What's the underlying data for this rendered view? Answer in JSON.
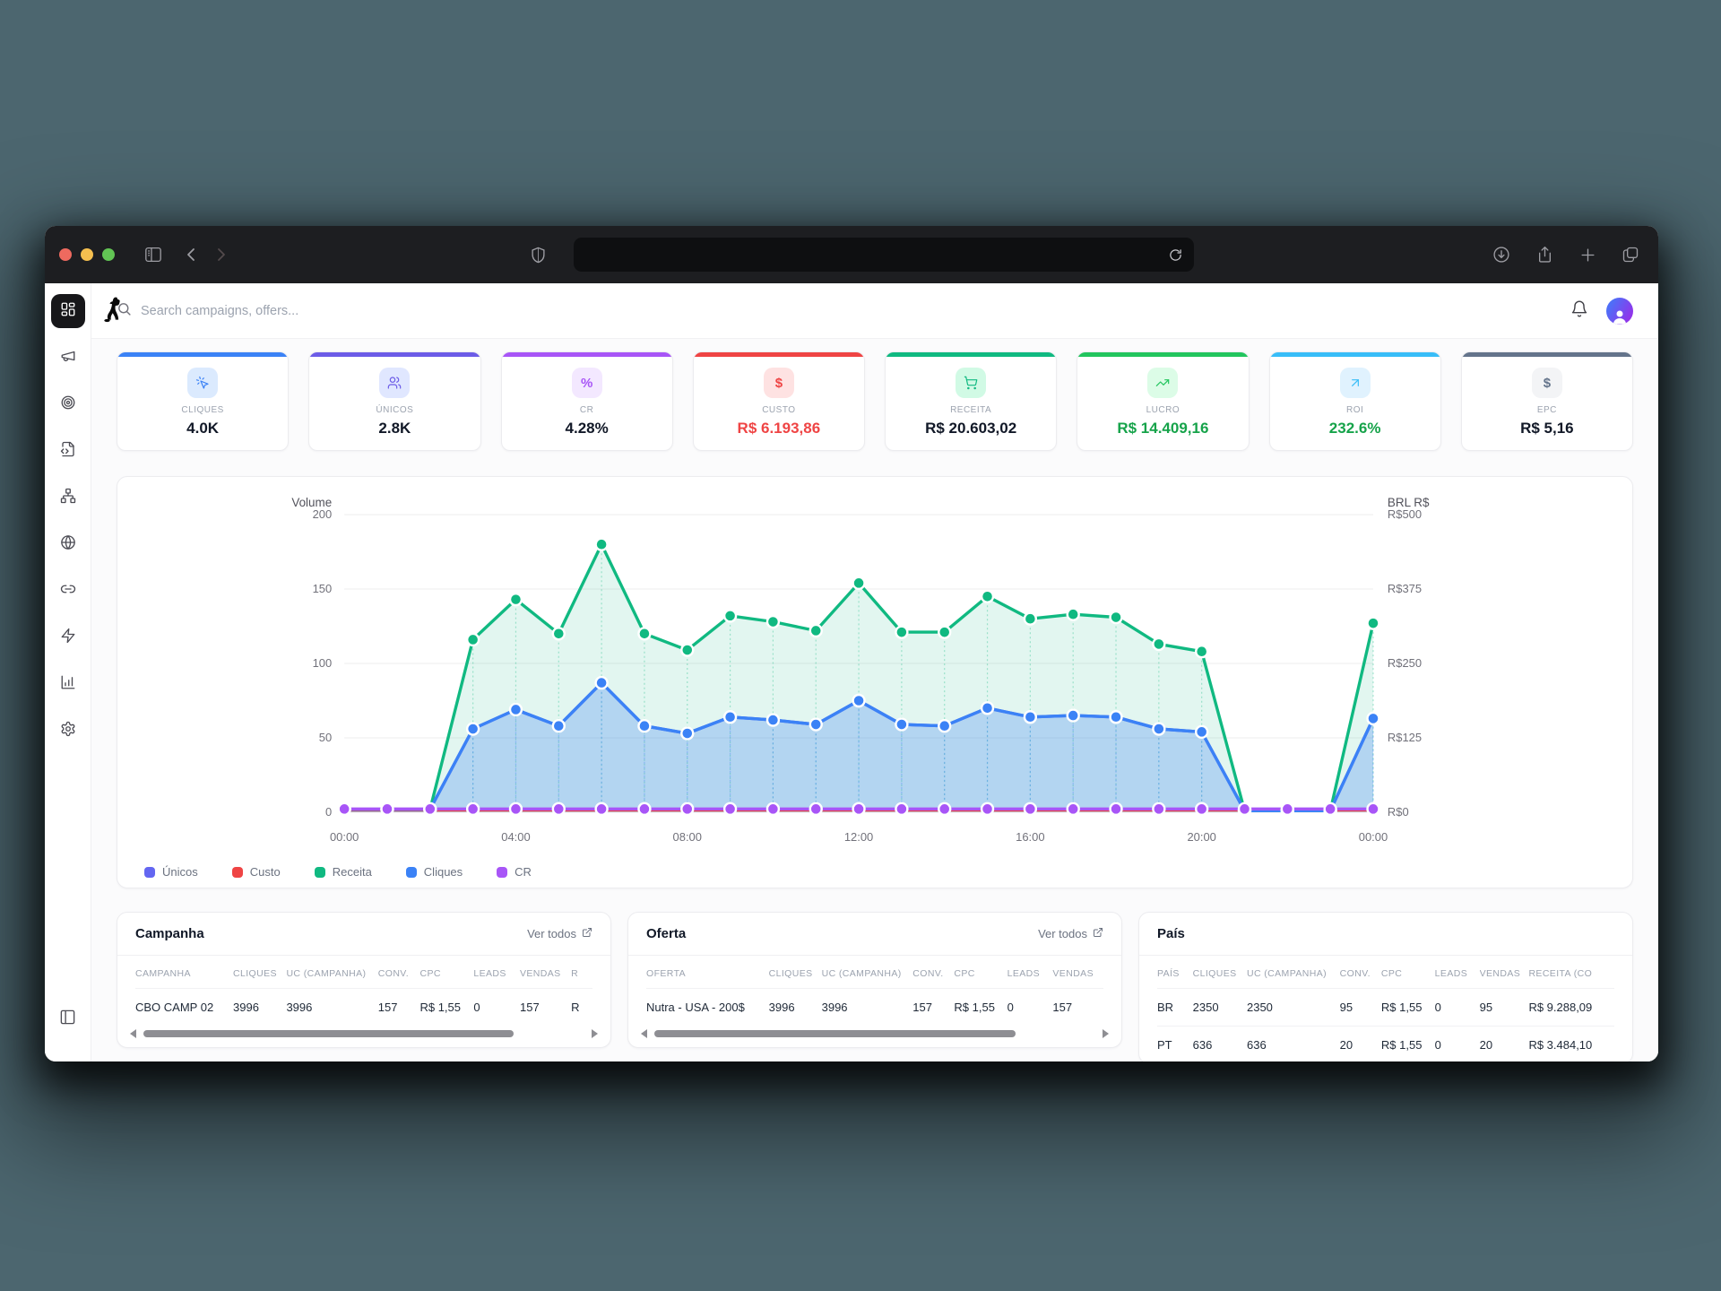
{
  "colors": {
    "backdrop": "#4c666f",
    "chrome_bg": "#1d1e21",
    "traffic_red": "#ee6a5f",
    "traffic_yellow": "#f5bf4f",
    "traffic_green": "#62c554",
    "accent_blue": "#3b82f6",
    "accent_indigo": "#6c5ce7",
    "accent_purple": "#a855f7",
    "accent_red": "#ef4444",
    "accent_emerald": "#10b981",
    "accent_green": "#22c55e",
    "accent_sky": "#38bdf8",
    "accent_slate": "#64748b",
    "positive_green": "#16a34a"
  },
  "chrome": {
    "icons": [
      "sidebar-toggle-icon",
      "back-icon",
      "forward-icon",
      "shield-icon",
      "reload-icon",
      "download-icon",
      "share-icon",
      "new-tab-icon",
      "tab-overview-icon"
    ],
    "url_value": ""
  },
  "topbar": {
    "search_placeholder": "Search campaigns, offers...",
    "icons": [
      "search-icon",
      "bell-icon",
      "avatar"
    ]
  },
  "sidebar": {
    "items": [
      {
        "name": "dashboard",
        "icon": "dashboard-grid-icon",
        "active": true
      },
      {
        "name": "campaigns",
        "icon": "megaphone-icon",
        "active": false
      },
      {
        "name": "offers",
        "icon": "target-icon",
        "active": false
      },
      {
        "name": "landing-pages",
        "icon": "file-code-icon",
        "active": false
      },
      {
        "name": "funnels",
        "icon": "network-icon",
        "active": false
      },
      {
        "name": "domains",
        "icon": "globe-icon",
        "active": false
      },
      {
        "name": "links",
        "icon": "link-icon",
        "active": false
      },
      {
        "name": "automation",
        "icon": "zap-icon",
        "active": false
      },
      {
        "name": "reports",
        "icon": "bar-chart-icon",
        "active": false
      },
      {
        "name": "settings",
        "icon": "gear-icon",
        "active": false
      }
    ],
    "bottom_icon": "panel-left-icon",
    "logo": "dog-logo"
  },
  "kpis": [
    {
      "label": "CLIQUES",
      "value": "4.0K",
      "accent": "#3b82f6",
      "chip_bg": "#dbeafe",
      "icon": "cursor-click-icon",
      "value_color": "#111827"
    },
    {
      "label": "ÚNICOS",
      "value": "2.8K",
      "accent": "#6c5ce7",
      "chip_bg": "#e0e7ff",
      "icon": "users-icon",
      "value_color": "#111827"
    },
    {
      "label": "CR",
      "value": "4.28%",
      "accent": "#a855f7",
      "chip_bg": "#f3e8ff",
      "icon": "percent-icon",
      "value_color": "#111827"
    },
    {
      "label": "CUSTO",
      "value": "R$ 6.193,86",
      "accent": "#ef4444",
      "chip_bg": "#fee2e2",
      "icon": "dollar-icon",
      "value_color": "#ef4444"
    },
    {
      "label": "RECEITA",
      "value": "R$ 20.603,02",
      "accent": "#10b981",
      "chip_bg": "#d1fae5",
      "icon": "cart-icon",
      "value_color": "#111827"
    },
    {
      "label": "LUCRO",
      "value": "R$ 14.409,16",
      "accent": "#22c55e",
      "chip_bg": "#dcfce7",
      "icon": "trend-up-icon",
      "value_color": "#16a34a"
    },
    {
      "label": "ROI",
      "value": "232.6%",
      "accent": "#38bdf8",
      "chip_bg": "#e0f2fe",
      "icon": "arrow-up-right-icon",
      "value_color": "#16a34a"
    },
    {
      "label": "EPC",
      "value": "R$ 5,16",
      "accent": "#64748b",
      "chip_bg": "#f3f4f6",
      "icon": "dollar-icon",
      "value_color": "#111827"
    }
  ],
  "chart_data": {
    "type": "line",
    "x": [
      "00:00",
      "01:00",
      "02:00",
      "03:00",
      "04:00",
      "05:00",
      "06:00",
      "07:00",
      "08:00",
      "09:00",
      "10:00",
      "11:00",
      "12:00",
      "13:00",
      "14:00",
      "15:00",
      "16:00",
      "17:00",
      "18:00",
      "19:00",
      "20:00",
      "21:00",
      "22:00",
      "23:00",
      "00:00"
    ],
    "x_tick_indices": [
      0,
      4,
      8,
      12,
      16,
      20,
      24
    ],
    "y_left": {
      "label": "Volume",
      "ticks": [
        0,
        50,
        100,
        150,
        200
      ],
      "max": 200
    },
    "y_right": {
      "label": "BRL R$",
      "ticks": [
        "R$0",
        "R$125",
        "R$250",
        "R$375",
        "R$500"
      ]
    },
    "grid": true,
    "legend_position": "bottom-left",
    "series": [
      {
        "name": "Únicos",
        "color": "#6366f1",
        "fill": false,
        "dots": false,
        "values": [
          2,
          2,
          2,
          56,
          69,
          58,
          87,
          58,
          53,
          64,
          62,
          59,
          75,
          59,
          58,
          70,
          64,
          65,
          64,
          56,
          54,
          1,
          1,
          1,
          63
        ]
      },
      {
        "name": "Custo",
        "color": "#ef4444",
        "fill": false,
        "dots": false,
        "values": [
          1.5,
          1.5,
          1.5,
          1.5,
          1.5,
          1.5,
          1.5,
          1.5,
          1.5,
          1.5,
          1.5,
          1.5,
          1.5,
          1.5,
          1.5,
          1.5,
          1.5,
          1.5,
          1.5,
          1.5,
          1.5,
          1.5,
          1.5,
          1.5,
          1.5
        ]
      },
      {
        "name": "Receita",
        "color": "#10b981",
        "fill": true,
        "fill_opacity": 0.12,
        "dots": true,
        "droplines": true,
        "values": [
          2,
          2,
          2,
          116,
          143,
          120,
          180,
          120,
          109,
          132,
          128,
          122,
          154,
          121,
          121,
          145,
          130,
          133,
          131,
          113,
          108,
          1,
          1,
          1,
          127
        ]
      },
      {
        "name": "Cliques",
        "color": "#3b82f6",
        "fill": true,
        "fill_opacity": 0.28,
        "dots": true,
        "droplines": true,
        "values": [
          2,
          2,
          2,
          56,
          69,
          58,
          87,
          58,
          53,
          64,
          62,
          59,
          75,
          59,
          58,
          70,
          64,
          65,
          64,
          56,
          54,
          1,
          1,
          1,
          63
        ]
      },
      {
        "name": "CR",
        "color": "#a855f7",
        "fill": false,
        "dots": true,
        "values": [
          2.2,
          2.2,
          2.2,
          2.2,
          2.2,
          2.2,
          2.2,
          2.2,
          2.2,
          2.2,
          2.2,
          2.2,
          2.2,
          2.2,
          2.2,
          2.2,
          2.2,
          2.2,
          2.2,
          2.2,
          2.2,
          2.2,
          2.2,
          2.2,
          2.2
        ]
      }
    ],
    "legend": [
      {
        "label": "Únicos",
        "color": "#6366f1"
      },
      {
        "label": "Custo",
        "color": "#ef4444"
      },
      {
        "label": "Receita",
        "color": "#10b981"
      },
      {
        "label": "Cliques",
        "color": "#3b82f6"
      },
      {
        "label": "CR",
        "color": "#a855f7"
      }
    ]
  },
  "tables": [
    {
      "title": "Campanha",
      "ver_todos": "Ver todos",
      "columns": [
        "CAMPANHA",
        "CLIQUES",
        "UC (CAMPANHA)",
        "CONV.",
        "CPC",
        "LEADS",
        "VENDAS",
        "R"
      ],
      "rows": [
        [
          "CBO CAMP 02",
          "3996",
          "3996",
          "157",
          "R$ 1,55",
          "0",
          "157",
          "R"
        ]
      ],
      "scrollbar": true
    },
    {
      "title": "Oferta",
      "ver_todos": "Ver todos",
      "columns": [
        "OFERTA",
        "CLIQUES",
        "UC (CAMPANHA)",
        "CONV.",
        "CPC",
        "LEADS",
        "VENDAS"
      ],
      "rows": [
        [
          "Nutra - USA - 200$",
          "3996",
          "3996",
          "157",
          "R$ 1,55",
          "0",
          "157"
        ]
      ],
      "scrollbar": true
    },
    {
      "title": "País",
      "ver_todos": "",
      "columns": [
        "PAÍS",
        "CLIQUES",
        "UC (CAMPANHA)",
        "CONV.",
        "CPC",
        "LEADS",
        "VENDAS",
        "RECEITA (CO"
      ],
      "rows": [
        [
          "BR",
          "2350",
          "2350",
          "95",
          "R$ 1,55",
          "0",
          "95",
          "R$ 9.288,09"
        ],
        [
          "PT",
          "636",
          "636",
          "20",
          "R$ 1,55",
          "0",
          "20",
          "R$ 3.484,10"
        ]
      ],
      "scrollbar": false
    }
  ]
}
